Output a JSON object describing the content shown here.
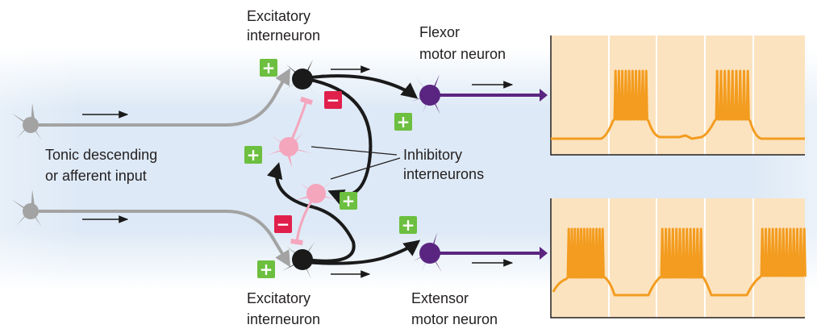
{
  "labels": {
    "excitatory_top_l1": "Excitatory",
    "excitatory_top_l2": "interneuron",
    "excitatory_bottom_l1": "Excitatory",
    "excitatory_bottom_l2": "interneuron",
    "flexor_l1": "Flexor",
    "flexor_l2": "motor neuron",
    "extensor_l1": "Extensor",
    "extensor_l2": "motor neuron",
    "tonic_l1": "Tonic descending",
    "tonic_l2": "or afferent input",
    "inhibitory_l1": "Inhibitory",
    "inhibitory_l2": "interneurons"
  },
  "signs": {
    "plus": "+",
    "minus": "−"
  },
  "colors": {
    "background_band": "#dce9f6",
    "input_neuron": "#a3a3a3",
    "excitatory_neuron": "#1a1a1a",
    "inhibitory_neuron": "#f4a6bd",
    "motor_neuron": "#5a2580",
    "plus_badge": "#6cbf3f",
    "minus_badge": "#e0204b",
    "trace": "#f39c1f",
    "trace_panel": "#fbe3c0"
  },
  "traces": {
    "flexor": {
      "bursts": 2,
      "rhythm": "alternating"
    },
    "extensor": {
      "bursts": 3,
      "rhythm": "alternating"
    }
  }
}
